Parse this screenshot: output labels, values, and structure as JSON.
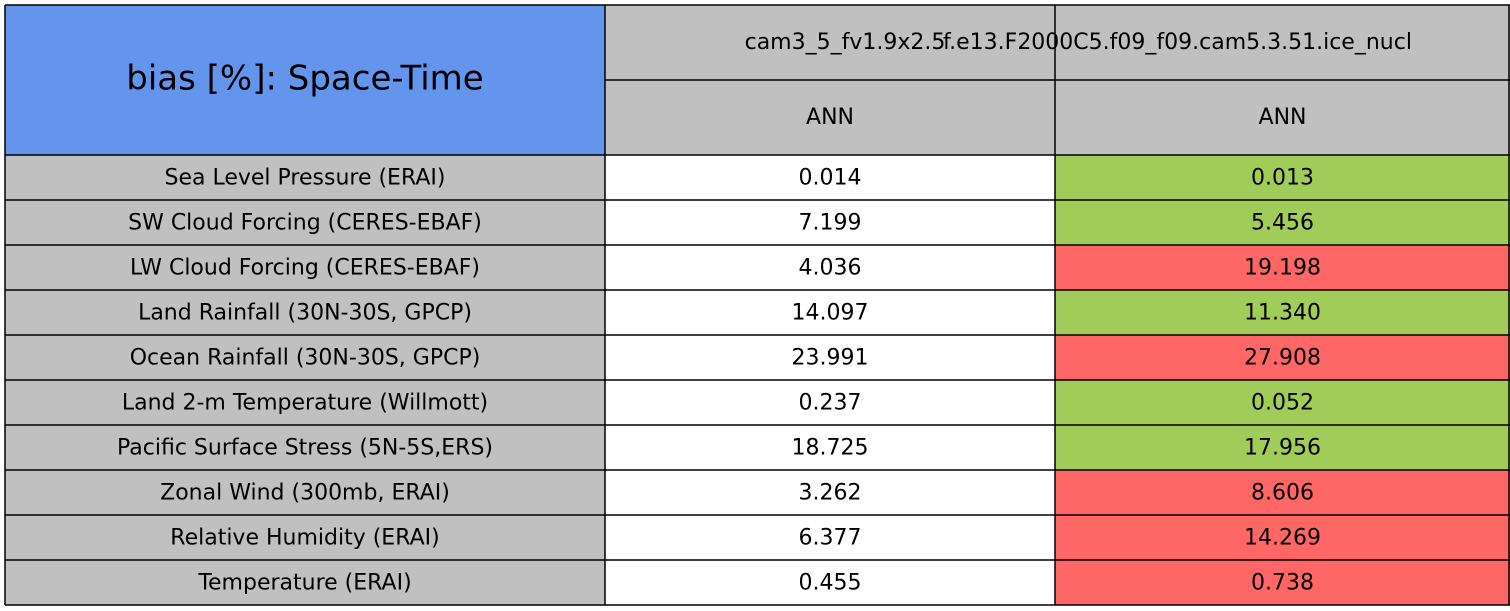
{
  "header": {
    "title": "bias [%]: Space-Time",
    "cases": [
      "cam3_5_fv1.9x2.5",
      "f.e13.F2000C5.f09_f09.cam5.3.51.ice_nucl"
    ],
    "seasons": [
      "ANN",
      "ANN"
    ]
  },
  "table": {
    "rows": [
      {
        "label": "Sea Level Pressure (ERAI)",
        "cells": [
          "0.014",
          "0.013"
        ],
        "colors": [
          "#ffffff",
          "#a2cc5a"
        ]
      },
      {
        "label": "SW Cloud Forcing (CERES-EBAF)",
        "cells": [
          "7.199",
          "5.456"
        ],
        "colors": [
          "#ffffff",
          "#a2cc5a"
        ]
      },
      {
        "label": "LW Cloud Forcing (CERES-EBAF)",
        "cells": [
          "4.036",
          "19.198"
        ],
        "colors": [
          "#ffffff",
          "#ff6666"
        ]
      },
      {
        "label": "Land Rainfall (30N-30S, GPCP)",
        "cells": [
          "14.097",
          "11.340"
        ],
        "colors": [
          "#ffffff",
          "#a2cc5a"
        ]
      },
      {
        "label": "Ocean Rainfall (30N-30S, GPCP)",
        "cells": [
          "23.991",
          "27.908"
        ],
        "colors": [
          "#ffffff",
          "#ff6666"
        ]
      },
      {
        "label": "Land 2-m Temperature (Willmott)",
        "cells": [
          "0.237",
          "0.052"
        ],
        "colors": [
          "#ffffff",
          "#a2cc5a"
        ]
      },
      {
        "label": "Pacific Surface Stress (5N-5S,ERS)",
        "cells": [
          "18.725",
          "17.956"
        ],
        "colors": [
          "#ffffff",
          "#a2cc5a"
        ]
      },
      {
        "label": "Zonal Wind (300mb, ERAI)",
        "cells": [
          "3.262",
          "8.606"
        ],
        "colors": [
          "#ffffff",
          "#ff6666"
        ]
      },
      {
        "label": "Relative Humidity (ERAI)",
        "cells": [
          "6.377",
          "14.269"
        ],
        "colors": [
          "#ffffff",
          "#ff6666"
        ]
      },
      {
        "label": "Temperature (ERAI)",
        "cells": [
          "0.455",
          "0.738"
        ],
        "colors": [
          "#ffffff",
          "#ff6666"
        ]
      }
    ]
  }
}
